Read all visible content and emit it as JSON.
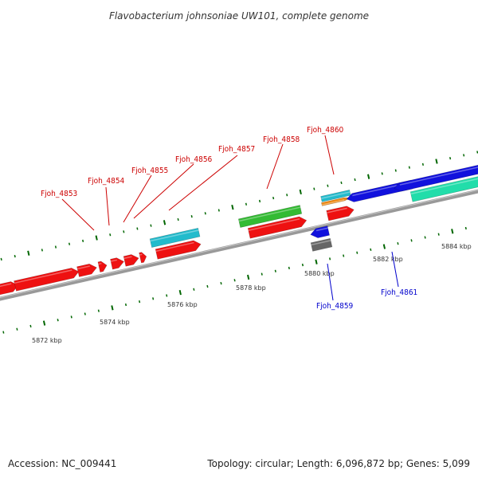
{
  "title": "Flavobacterium johnsoniae UW101, complete genome",
  "footer": {
    "accession": "Accession: NC_009441",
    "summary": "Topology: circular; Length: 6,096,872 bp; Genes: 5,099"
  },
  "colors": {
    "cds_forward": "#ee1111",
    "cds_reverse": "#1111dd",
    "rna_green": "#33bb33",
    "rna_cyan": "#22bbcc",
    "rna_orange": "#ee8811",
    "rna_gray": "#666666",
    "rna_teal": "#22ddaa",
    "backbone": "#888888",
    "ticks": "#006600",
    "label_forward": "#cc0000",
    "label_reverse": "#0000cc"
  },
  "kbp_labels": [
    "5872 kbp",
    "5874 kbp",
    "5876 kbp",
    "5878 kbp",
    "5880 kbp",
    "5882 kbp",
    "5884 kbp"
  ],
  "gene_labels_forward": [
    "Fjoh_4853",
    "Fjoh_4854",
    "Fjoh_4855",
    "Fjoh_4856",
    "Fjoh_4857",
    "Fjoh_4858",
    "Fjoh_4860"
  ],
  "gene_labels_reverse": [
    "Fjoh_4859",
    "Fjoh_4861"
  ]
}
